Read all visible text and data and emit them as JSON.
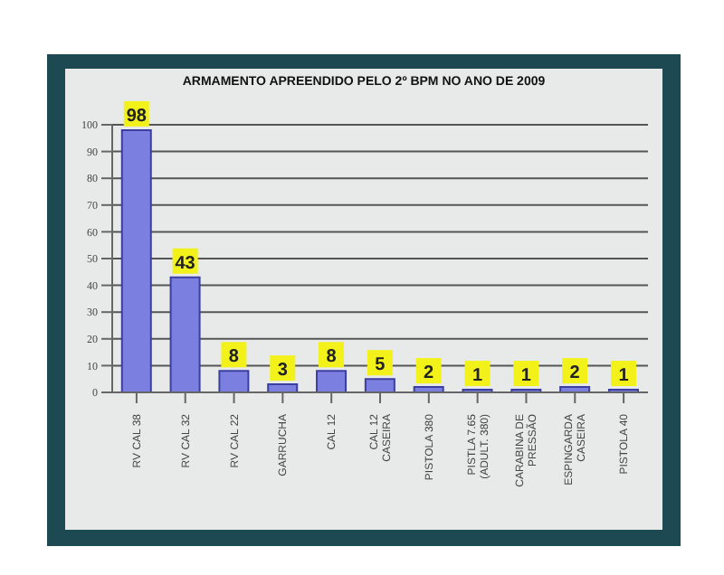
{
  "chart_data": {
    "type": "bar",
    "title": "ARMAMENTO APREENDIDO PELO 2º BPM NO ANO DE 2009",
    "categories": [
      "RV CAL 38",
      "RV CAL 32",
      "RV CAL 22",
      "GARRUCHA",
      "CAL 12",
      "CAL 12 CASEIRA",
      "PISTOLA 380",
      "PISTLA 7.65 (ADULT. 380)",
      "CARABINA DE PRESSÃO",
      "ESPINGARDA CASEIRA",
      "PISTOLA 40"
    ],
    "values": [
      98,
      43,
      8,
      3,
      8,
      5,
      2,
      1,
      1,
      2,
      1
    ],
    "color": "#7b80e0",
    "ylim": [
      0,
      100
    ],
    "yticks": [
      0,
      10,
      20,
      30,
      40,
      50,
      60,
      70,
      80,
      90,
      100
    ],
    "grid": "y",
    "data_labels": true
  }
}
